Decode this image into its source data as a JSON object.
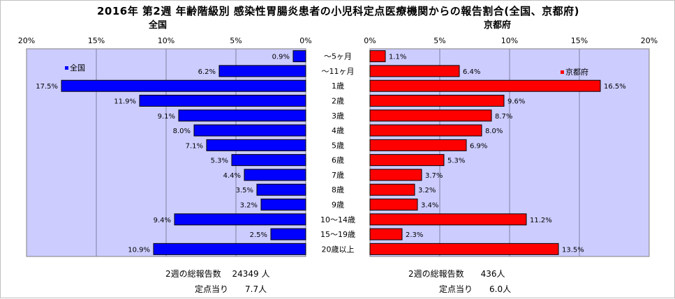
{
  "title": "2016年 第2週 年齢階級別 感染性胃腸炎患者の小児科定点医療機関からの報告割合(全国、京都府)",
  "chart_data": [
    {
      "type": "bar",
      "orientation": "horizontal",
      "x_direction": "reversed",
      "title": "全国",
      "legend": "全国",
      "legend_position": "top-left",
      "color": "#0000ff",
      "xlim": [
        0,
        20
      ],
      "xticks": [
        "20%",
        "15%",
        "10%",
        "5%",
        "0%"
      ],
      "categories": [
        "～5ヶ月",
        "～11ヶ月",
        "1歳",
        "2歳",
        "3歳",
        "4歳",
        "5歳",
        "6歳",
        "7歳",
        "8歳",
        "9歳",
        "10～14歳",
        "15～19歳",
        "20歳以上"
      ],
      "values": [
        0.9,
        6.2,
        17.5,
        11.9,
        9.1,
        8.0,
        7.1,
        5.3,
        4.4,
        3.5,
        3.2,
        9.4,
        2.5,
        10.9
      ],
      "labels": [
        "0.9%",
        "6.2%",
        "17.5%",
        "11.9%",
        "9.1%",
        "8.0%",
        "7.1%",
        "5.3%",
        "4.4%",
        "3.5%",
        "3.2%",
        "9.4%",
        "2.5%",
        "10.9%"
      ],
      "grid": true
    },
    {
      "type": "bar",
      "orientation": "horizontal",
      "title": "京都府",
      "legend": "京都府",
      "legend_position": "top-right",
      "color": "#ff0000",
      "xlim": [
        0,
        20
      ],
      "xticks": [
        "0%",
        "5%",
        "10%",
        "15%",
        "20%"
      ],
      "categories": [
        "～5ヶ月",
        "～11ヶ月",
        "1歳",
        "2歳",
        "3歳",
        "4歳",
        "5歳",
        "6歳",
        "7歳",
        "8歳",
        "9歳",
        "10～14歳",
        "15～19歳",
        "20歳以上"
      ],
      "values": [
        1.1,
        6.4,
        16.5,
        9.6,
        8.7,
        8.0,
        6.9,
        5.3,
        3.7,
        3.2,
        3.4,
        11.2,
        2.3,
        13.5
      ],
      "labels": [
        "1.1%",
        "6.4%",
        "16.5%",
        "9.6%",
        "8.7%",
        "8.0%",
        "6.9%",
        "5.3%",
        "3.7%",
        "3.2%",
        "3.4%",
        "11.2%",
        "2.3%",
        "13.5%"
      ],
      "grid": true
    }
  ],
  "footer": {
    "national_reports": "2週の総報告数　 24349 人",
    "national_per_site": "定点当り　　7.7人",
    "kyoto_reports": "2週の総報告数　　436人",
    "kyoto_per_site": "定点当り　　6.0人"
  },
  "colors": {
    "plot_bg": "#ccccff",
    "grid": "#8080a0",
    "national": "#0000ff",
    "kyoto": "#ff0000"
  }
}
